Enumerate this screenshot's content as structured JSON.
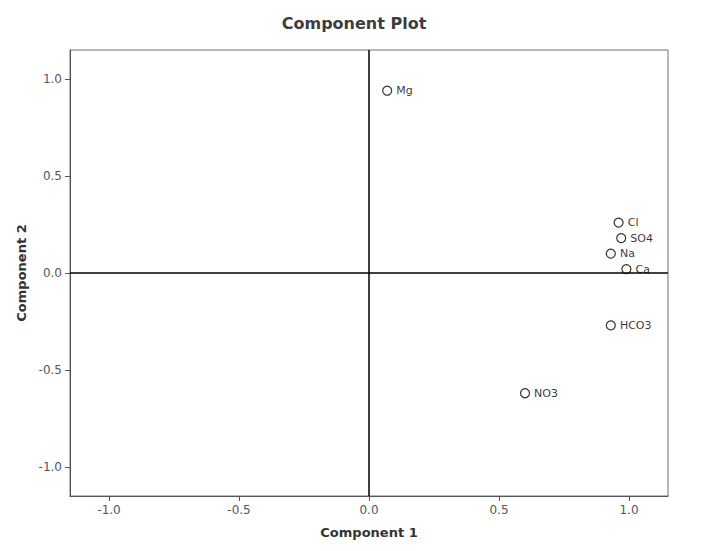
{
  "chart_data": {
    "type": "scatter",
    "title": "Component Plot",
    "x_label": "Component 1",
    "y_label": "Component 2",
    "labels": [
      "Mg",
      "Cl",
      "SO4",
      "Na",
      "Ca",
      "HCO3",
      "NO3"
    ],
    "x": [
      0.07,
      0.96,
      0.97,
      0.93,
      0.99,
      0.93,
      0.6
    ],
    "values": [
      0.94,
      0.26,
      0.18,
      0.1,
      0.02,
      -0.27,
      -0.62
    ],
    "color": "#000000",
    "marker": "circle",
    "xlim": [
      -1.15,
      1.15
    ],
    "ylim": [
      -1.15,
      1.15
    ],
    "xticks": [
      {
        "value": -1.0,
        "label": "-1.0"
      },
      -0.5,
      {
        "value": 0.0,
        "label": "0.0"
      },
      0.5,
      {
        "value": 1.0,
        "label": "1.0"
      }
    ],
    "yticks": [
      {
        "value": -1.0,
        "label": "-1.0"
      },
      -0.5,
      {
        "value": 0.0,
        "label": "0.0"
      },
      0.5,
      {
        "value": 1.0,
        "label": "1.0"
      }
    ],
    "grid": false
  }
}
